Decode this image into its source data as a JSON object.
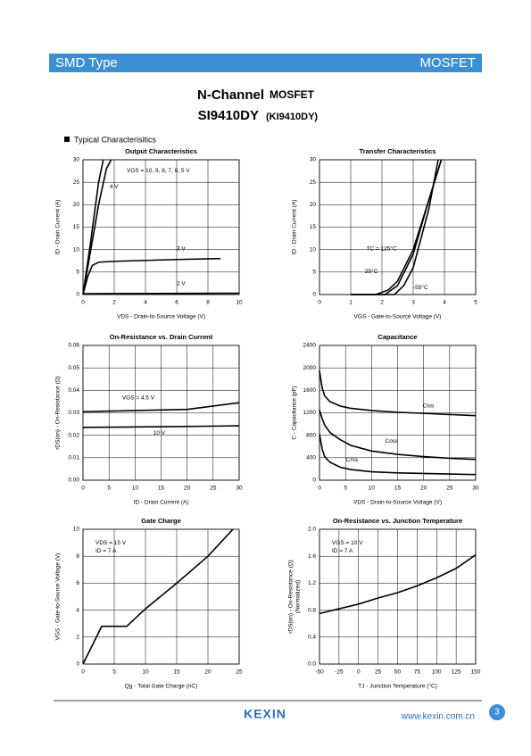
{
  "header": {
    "left": "SMD Type",
    "right": "MOSFET"
  },
  "title": {
    "main": "N-Channel",
    "kind": "MOSFET",
    "part": "SI9410DY",
    "alt": "(KI9410DY)"
  },
  "section": "Typical Characterisitics",
  "chart_data": [
    {
      "type": "line",
      "title": "Output Characteristics",
      "xlabel": "VDS - Drain-to-Source Voltage (V)",
      "ylabel": "ID - Drain Current (A)",
      "xlim": [
        0,
        10
      ],
      "xticks": [
        0,
        2,
        4,
        6,
        8,
        10
      ],
      "ylim": [
        0,
        30
      ],
      "yticks": [
        0,
        5,
        10,
        15,
        20,
        25,
        30
      ],
      "grid": true,
      "series": [
        {
          "name": "VGS = 10, 9, 8, 7, 6, 5 V",
          "color": "#000000",
          "x": [
            0,
            0.5,
            1.0,
            1.3
          ],
          "values": [
            0,
            12,
            25,
            30
          ]
        },
        {
          "name": "4 V",
          "color": "#000000",
          "x": [
            0,
            0.5,
            1,
            1.5,
            1.8
          ],
          "values": [
            0,
            10,
            20,
            28,
            30
          ]
        },
        {
          "name": "3 V",
          "color": "#000000",
          "x": [
            0,
            0.3,
            0.6,
            1,
            2,
            4,
            6,
            8.8
          ],
          "values": [
            0,
            4,
            6.5,
            7.2,
            7.4,
            7.6,
            7.8,
            8.0
          ]
        },
        {
          "name": "2 V",
          "color": "#000000",
          "x": [
            0,
            10
          ],
          "values": [
            0.2,
            0.3
          ]
        }
      ]
    },
    {
      "type": "line",
      "title": "Transfer Characteristics",
      "xlabel": "VGS - Gate-to-Source Voltage (V)",
      "ylabel": "ID - Drain Current (A)",
      "xlim": [
        0,
        5
      ],
      "xticks": [
        0,
        1,
        2,
        3,
        4,
        5
      ],
      "ylim": [
        0,
        30
      ],
      "yticks": [
        0,
        5,
        10,
        15,
        20,
        25,
        30
      ],
      "grid": true,
      "series": [
        {
          "name": "TC = 125°C",
          "color": "#000000",
          "x": [
            1,
            1.8,
            2.2,
            2.5,
            3,
            3.5,
            3.9
          ],
          "values": [
            0,
            0,
            1,
            3,
            10,
            21,
            30
          ]
        },
        {
          "name": "25°C",
          "color": "#000000",
          "x": [
            1,
            2.1,
            2.5,
            3,
            3.5,
            3.9
          ],
          "values": [
            0,
            0,
            2,
            9,
            21,
            30
          ]
        },
        {
          "name": "-55°C",
          "color": "#000000",
          "x": [
            1,
            2.4,
            2.7,
            3,
            3.5,
            3.8
          ],
          "values": [
            0,
            0,
            2,
            6,
            19,
            30
          ]
        }
      ]
    },
    {
      "type": "line",
      "title": "On-Resistance vs. Drain Current",
      "xlabel": "ID - Drain Current (A)",
      "ylabel": "rDS(on) - On-Resistance (Ω)",
      "xlim": [
        0,
        30
      ],
      "xticks": [
        0,
        5,
        10,
        15,
        20,
        25,
        30
      ],
      "ylim": [
        0,
        0.06
      ],
      "yticks": [
        {
          "value": 0,
          "label": "0.00"
        },
        0.01,
        0.02,
        0.03,
        0.04,
        0.05,
        0.06
      ],
      "grid": true,
      "series": [
        {
          "name": "VGS = 4.5 V",
          "color": "#000000",
          "x": [
            0,
            10,
            20,
            25,
            30
          ],
          "values": [
            0.0305,
            0.031,
            0.0315,
            0.033,
            0.0345
          ]
        },
        {
          "name": "10 V",
          "color": "#000000",
          "x": [
            0,
            15,
            30
          ],
          "values": [
            0.0235,
            0.0238,
            0.0242
          ]
        }
      ]
    },
    {
      "type": "line",
      "title": "Capacitance",
      "xlabel": "VDS - Drain-to-Source Voltage (V)",
      "ylabel": "C - Capacitance (pF)",
      "xlim": [
        0,
        30
      ],
      "xticks": [
        0,
        5,
        10,
        15,
        20,
        25,
        30
      ],
      "ylim": [
        0,
        2400
      ],
      "yticks": [
        0,
        400,
        800,
        1200,
        1600,
        2000,
        2400
      ],
      "grid": true,
      "series": [
        {
          "name": "Ciss",
          "color": "#000000",
          "x": [
            0,
            0.5,
            1,
            2,
            4,
            6,
            10,
            15,
            20,
            25,
            30
          ],
          "values": [
            1950,
            1650,
            1500,
            1400,
            1320,
            1280,
            1240,
            1210,
            1190,
            1170,
            1150
          ]
        },
        {
          "name": "Coss",
          "color": "#000000",
          "x": [
            0,
            0.5,
            1,
            2,
            4,
            6,
            10,
            15,
            20,
            25,
            30
          ],
          "values": [
            1250,
            1100,
            980,
            850,
            720,
            620,
            520,
            460,
            420,
            390,
            370
          ]
        },
        {
          "name": "Crss",
          "color": "#000000",
          "x": [
            0,
            0.5,
            1,
            2,
            4,
            6,
            10,
            15,
            20,
            25,
            30
          ],
          "values": [
            820,
            560,
            420,
            320,
            230,
            190,
            150,
            130,
            120,
            110,
            100
          ]
        }
      ]
    },
    {
      "type": "line",
      "title": "Gate Charge",
      "xlabel": "Qg - Total Gate Charge (nC)",
      "ylabel": "VGS - Gate-to-Source Voltage (V)",
      "xlim": [
        0,
        25
      ],
      "xticks": [
        0,
        5,
        10,
        15,
        20,
        25
      ],
      "ylim": [
        0,
        10
      ],
      "yticks": [
        0,
        2,
        4,
        6,
        8,
        10
      ],
      "grid": true,
      "annotations": [
        "VDS = 15 V",
        "ID = 7 A"
      ],
      "series": [
        {
          "color": "#000000",
          "x": [
            0,
            3,
            7,
            10,
            15,
            20,
            24
          ],
          "values": [
            0,
            2.8,
            2.8,
            4.1,
            6,
            8,
            10
          ]
        }
      ]
    },
    {
      "type": "line",
      "title": "On-Resistance vs. Junction Temperature",
      "xlabel": "TJ - Junction Temperature (°C)",
      "ylabel": "rDS(on) - On-Resistance (Ω)",
      "ylabel_note": "(Normalized)",
      "xlim": [
        -50,
        150
      ],
      "xticks": [
        -50,
        -25,
        0,
        25,
        50,
        75,
        100,
        125,
        150
      ],
      "ylim": [
        0,
        2
      ],
      "yticks": [
        {
          "value": 0,
          "label": "0.0"
        },
        0.4,
        0.8,
        1.2,
        1.6,
        {
          "value": 2,
          "label": "2.0"
        }
      ],
      "grid": true,
      "annotations": [
        "VGS = 10 V",
        "ID = 7 A"
      ],
      "series": [
        {
          "color": "#000000",
          "x": [
            -50,
            -25,
            0,
            25,
            50,
            75,
            100,
            125,
            150
          ],
          "values": [
            0.75,
            0.82,
            0.89,
            0.98,
            1.06,
            1.16,
            1.28,
            1.42,
            1.62
          ]
        }
      ]
    }
  ],
  "footer": {
    "logo": "KEXIN",
    "url": "www.kexin.com.cn",
    "page": "3"
  }
}
